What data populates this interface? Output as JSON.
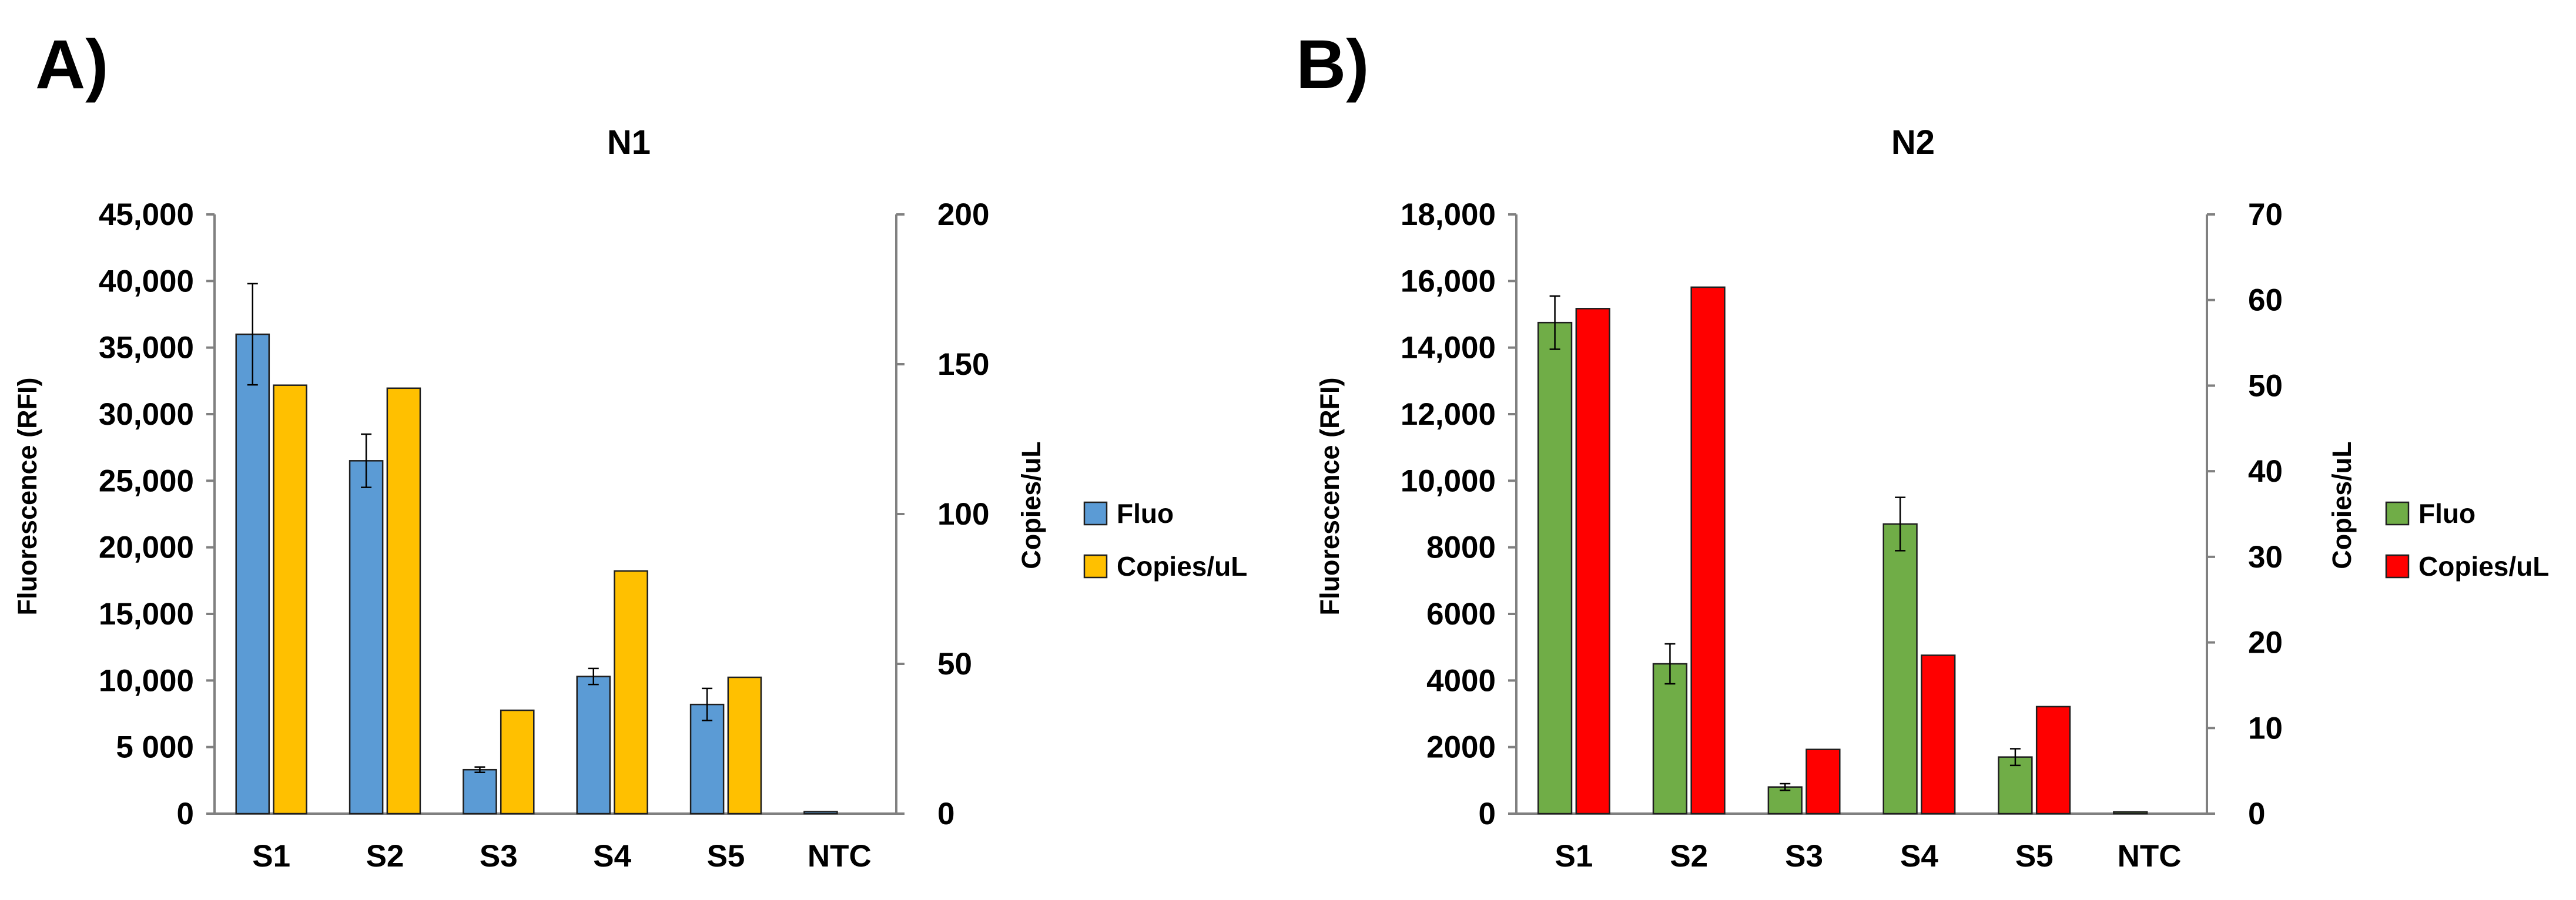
{
  "panels": [
    {
      "letter": "A)",
      "chart_data": {
        "type": "bar",
        "title": "N1",
        "categories": [
          "S1",
          "S2",
          "S3",
          "S4",
          "S5",
          "NTC"
        ],
        "ylabel": "Fluorescence (RFI)",
        "y2label": "Copies/uL",
        "ylim": [
          0,
          45000
        ],
        "y2lim": [
          0,
          200
        ],
        "yticks": [
          "0",
          "5 000",
          "10,000",
          "15,000",
          "20,000",
          "25,000",
          "30,000",
          "35,000",
          "40,000",
          "45,000"
        ],
        "y2ticks": [
          "0",
          "50",
          "100",
          "150",
          "200"
        ],
        "series": [
          {
            "name": "Fluo",
            "axis": "left",
            "color": "#5b9bd5",
            "values": [
              36000,
              26500,
              3300,
              10300,
              8200,
              150
            ],
            "errors": [
              3800,
              2000,
              200,
              600,
              1200,
              0
            ]
          },
          {
            "name": "Copies/uL",
            "axis": "right",
            "color": "#ffc000",
            "values": [
              143,
              142,
              34.5,
              81,
              45.5,
              0
            ],
            "errors": [
              0,
              0,
              0,
              0,
              0,
              0
            ]
          }
        ],
        "legend": "right",
        "grid": false
      }
    },
    {
      "letter": "B)",
      "chart_data": {
        "type": "bar",
        "title": "N2",
        "categories": [
          "S1",
          "S2",
          "S3",
          "S4",
          "S5",
          "NTC"
        ],
        "ylabel": "Fluorescence (RFI)",
        "y2label": "Copies/uL",
        "ylim": [
          0,
          18000
        ],
        "y2lim": [
          0,
          70
        ],
        "yticks": [
          "0",
          "2000",
          "4000",
          "6000",
          "8000",
          "10,000",
          "12,000",
          "14,000",
          "16,000",
          "18,000"
        ],
        "y2ticks": [
          "0",
          "10",
          "20",
          "30",
          "40",
          "50",
          "60",
          "70"
        ],
        "series": [
          {
            "name": "Fluo",
            "axis": "left",
            "color": "#70ad47",
            "values": [
              14750,
              4500,
              800,
              8700,
              1700,
              50
            ],
            "errors": [
              800,
              600,
              100,
              800,
              250,
              0
            ]
          },
          {
            "name": "Copies/uL",
            "axis": "right",
            "color": "#ff0000",
            "values": [
              59,
              61.5,
              7.5,
              18.5,
              12.5,
              0
            ],
            "errors": [
              0,
              0,
              0,
              0,
              0,
              0
            ]
          }
        ],
        "legend": "right",
        "grid": false
      }
    }
  ]
}
